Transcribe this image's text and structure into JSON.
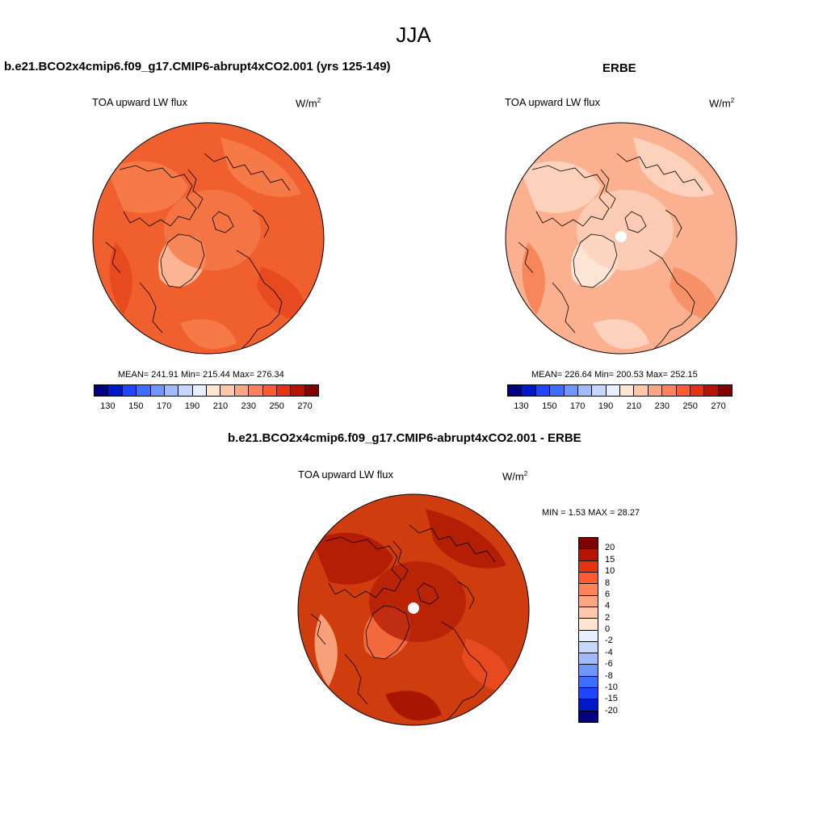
{
  "page": {
    "title": "JJA"
  },
  "panel_left": {
    "title": "b.e21.BCO2x4cmip6.f09_g17.CMIP6-abrupt4xCO2.001 (yrs 125-149)",
    "variable": "TOA upward LW flux",
    "units_base": "W/m",
    "units_exp": "2",
    "stats": "MEAN= 241.91  Min= 215.44  Max= 276.34"
  },
  "panel_right": {
    "title": "ERBE",
    "variable": "TOA upward LW flux",
    "units_base": "W/m",
    "units_exp": "2",
    "stats": "MEAN= 226.64  Min= 200.53  Max= 252.15"
  },
  "panel_diff": {
    "title": "b.e21.BCO2x4cmip6.f09_g17.CMIP6-abrupt4xCO2.001 - ERBE",
    "variable": "TOA upward LW flux",
    "units_base": "W/m",
    "units_exp": "2",
    "minmax": "MIN =   1.53 MAX =  28.27"
  },
  "colorbar_abs": {
    "colors": [
      "#000080",
      "#0019c8",
      "#1e46ff",
      "#3c6eff",
      "#6e96ff",
      "#a0b9ff",
      "#c8d7ff",
      "#e6f0ff",
      "#ffe6d2",
      "#ffc8aa",
      "#ffa582",
      "#ff825a",
      "#ff5a32",
      "#e6320f",
      "#b41400",
      "#820000"
    ],
    "tick_labels": [
      "130",
      "150",
      "170",
      "190",
      "210",
      "230",
      "250",
      "270"
    ]
  },
  "colorbar_diff": {
    "colors": [
      "#820000",
      "#b41400",
      "#e6320f",
      "#ff5a32",
      "#ff825a",
      "#ffa582",
      "#ffc8aa",
      "#ffe6d2",
      "#e6f0ff",
      "#c8d7ff",
      "#a0b9ff",
      "#6e96ff",
      "#3c6eff",
      "#1e46ff",
      "#0019c8",
      "#000080"
    ],
    "tick_labels": [
      "20",
      "15",
      "10",
      "8",
      "6",
      "4",
      "2",
      "0",
      "-2",
      "-4",
      "-6",
      "-8",
      "-10",
      "-15",
      "-20"
    ]
  },
  "maps": {
    "left": {
      "base": "#f0602e",
      "regions": [
        "#f57a48",
        "#f57a48",
        "#fbb595",
        "#e84a20",
        "#e84a20",
        "#f57a48"
      ],
      "pole_hole": false
    },
    "right": {
      "base": "#fbb090",
      "regions": [
        "#fdd2bc",
        "#fdd2bc",
        "#fee6d6",
        "#f7875a",
        "#f79268",
        "#fdd2bc"
      ],
      "pole_hole": true
    },
    "diff": {
      "base": "#cf3d0e",
      "regions": [
        "#b41e05",
        "#b41e05",
        "#f26a3c",
        "#f8a07a",
        "#e84a20",
        "#a81500"
      ],
      "pole_hole": true
    }
  }
}
